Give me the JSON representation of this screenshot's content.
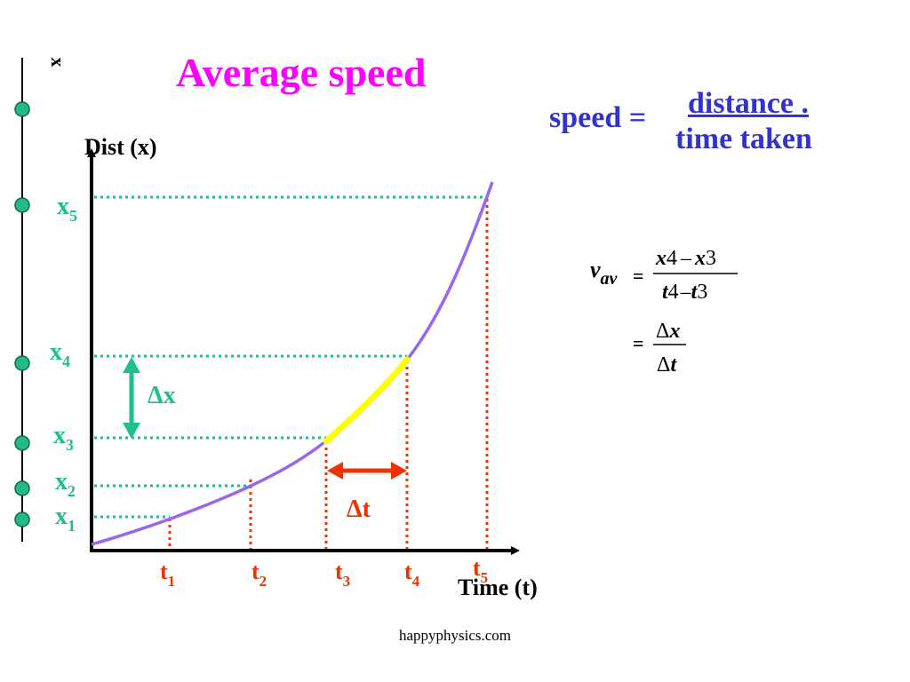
{
  "title": "Average speed",
  "speed_formula": {
    "lhs": "speed =",
    "numerator": "distance .",
    "denominator": "time taken"
  },
  "vav_formula": {
    "lhs_var": "v",
    "lhs_sub": "av",
    "eq": "=",
    "num_a": "x",
    "num_a_sub": "4",
    "minus": "–",
    "num_b": "x",
    "num_b_sub": "3",
    "den_a": "t",
    "den_a_sub": "4",
    "den_b": "t",
    "den_b_sub": "3",
    "eq2": "=",
    "delta": "Δ",
    "dx_var": "x",
    "dt_var": "t"
  },
  "axis_labels": {
    "y": "Dist (x)",
    "x": "Time (t)",
    "side_axis": "x"
  },
  "position_labels": [
    {
      "base": "x",
      "sub": "5"
    },
    {
      "base": "x",
      "sub": "4"
    },
    {
      "base": "x",
      "sub": "3"
    },
    {
      "base": "x",
      "sub": "2"
    },
    {
      "base": "x",
      "sub": "1"
    }
  ],
  "time_labels": [
    {
      "base": "t",
      "sub": "1"
    },
    {
      "base": "t",
      "sub": "2"
    },
    {
      "base": "t",
      "sub": "3"
    },
    {
      "base": "t",
      "sub": "4"
    },
    {
      "base": "t",
      "sub": "5"
    }
  ],
  "delta_x_label": {
    "delta": "Δ",
    "var": "x"
  },
  "delta_t_label": {
    "delta": "Δ",
    "var": "t"
  },
  "footer": "happyphysics.com",
  "colors": {
    "title": "#ff00ff",
    "formula": "#3333cc",
    "teal": "#1dbf8f",
    "red": "#ee3300",
    "curve": "#9966ee",
    "highlight": "#ffff00",
    "circle_fill": "#22bb88"
  }
}
